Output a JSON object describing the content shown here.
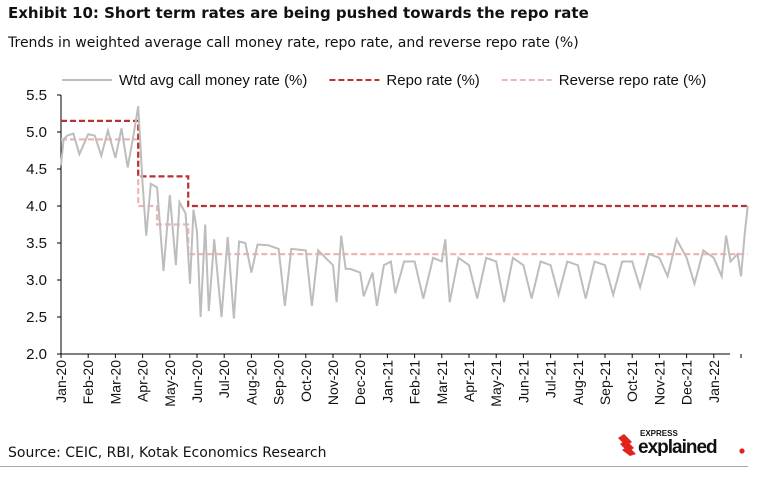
{
  "header": {
    "title": "Exhibit 10: Short term rates are being pushed towards the repo rate",
    "subtitle": "Trends in weighted average call money rate, repo rate, and reverse repo rate (%)"
  },
  "footer": {
    "source": "Source: CEIC, RBI, Kotak Economics Research",
    "logo_text": "EXPRESS explained."
  },
  "chart_data": {
    "type": "line",
    "title": "Exhibit 10: Short term rates are being pushed towards the repo rate",
    "subtitle": "Trends in weighted average call money rate, repo rate, and reverse repo rate (%)",
    "ylim": [
      2.0,
      5.5
    ],
    "yticks": [
      "2.0",
      "2.5",
      "3.0",
      "3.5",
      "4.0",
      "4.5",
      "5.0",
      "5.5"
    ],
    "xticks": [
      "Jan-20",
      "Feb-20",
      "Mar-20",
      "Apr-20",
      "May-20",
      "Jun-20",
      "Jul-20",
      "Aug-20",
      "Sep-20",
      "Oct-20",
      "Nov-20",
      "Dec-20",
      "Jan-21",
      "Feb-21",
      "Mar-21",
      "Apr-21",
      "May-21",
      "Jun-21",
      "Jul-21",
      "Aug-21",
      "Sep-21",
      "Oct-21",
      "Nov-21",
      "Dec-21",
      "Jan-22"
    ],
    "grid": false,
    "legend": "top",
    "series": [
      {
        "name": "Wtd avg call money rate (%)",
        "color": "#bdbdbd",
        "style": "solid",
        "x": [
          "2020-01-01",
          "2020-01-04",
          "2020-01-08",
          "2020-01-15",
          "2020-01-22",
          "2020-02-01",
          "2020-02-08",
          "2020-02-15",
          "2020-02-22",
          "2020-03-01",
          "2020-03-08",
          "2020-03-15",
          "2020-03-22",
          "2020-03-27",
          "2020-04-01",
          "2020-04-05",
          "2020-04-10",
          "2020-04-17",
          "2020-04-24",
          "2020-05-01",
          "2020-05-08",
          "2020-05-12",
          "2020-05-19",
          "2020-05-24",
          "2020-05-28",
          "2020-06-01",
          "2020-06-05",
          "2020-06-10",
          "2020-06-14",
          "2020-06-20",
          "2020-06-28",
          "2020-07-05",
          "2020-07-12",
          "2020-07-18",
          "2020-07-25",
          "2020-08-01",
          "2020-08-08",
          "2020-08-20",
          "2020-09-01",
          "2020-09-08",
          "2020-09-15",
          "2020-10-01",
          "2020-10-08",
          "2020-10-15",
          "2020-11-01",
          "2020-11-05",
          "2020-11-10",
          "2020-11-15",
          "2020-11-20",
          "2020-12-01",
          "2020-12-05",
          "2020-12-15",
          "2020-12-20",
          "2020-12-28",
          "2021-01-05",
          "2021-01-10",
          "2021-01-20",
          "2021-02-01",
          "2021-02-10",
          "2021-02-20",
          "2021-03-01",
          "2021-03-05",
          "2021-03-10",
          "2021-03-20",
          "2021-04-01",
          "2021-04-10",
          "2021-04-20",
          "2021-05-01",
          "2021-05-10",
          "2021-05-20",
          "2021-06-01",
          "2021-06-10",
          "2021-06-20",
          "2021-07-01",
          "2021-07-10",
          "2021-07-20",
          "2021-08-01",
          "2021-08-10",
          "2021-08-20",
          "2021-09-01",
          "2021-09-10",
          "2021-09-20",
          "2021-10-01",
          "2021-10-10",
          "2021-10-20",
          "2021-11-01",
          "2021-11-10",
          "2021-11-20",
          "2021-12-01",
          "2021-12-10",
          "2021-12-20",
          "2022-01-01",
          "2022-01-10",
          "2022-01-15",
          "2022-01-20",
          "2022-01-28",
          "2022-02-01",
          "2022-02-05",
          "2022-02-08"
        ],
        "values": [
          4.55,
          4.9,
          4.95,
          4.98,
          4.7,
          4.97,
          4.95,
          4.68,
          5.02,
          4.65,
          5.05,
          4.52,
          4.98,
          5.35,
          4.3,
          3.6,
          4.3,
          4.25,
          3.12,
          4.15,
          3.2,
          4.05,
          3.9,
          2.95,
          3.95,
          3.65,
          2.5,
          3.75,
          2.58,
          3.55,
          2.5,
          3.58,
          2.48,
          3.52,
          3.5,
          3.1,
          3.48,
          3.47,
          3.42,
          2.65,
          3.42,
          3.4,
          2.65,
          3.4,
          3.2,
          2.7,
          3.6,
          3.15,
          3.15,
          3.1,
          2.78,
          3.1,
          2.65,
          3.2,
          3.25,
          2.82,
          3.25,
          3.25,
          2.75,
          3.3,
          3.25,
          3.55,
          2.7,
          3.3,
          3.2,
          2.75,
          3.3,
          3.25,
          2.7,
          3.3,
          3.2,
          2.75,
          3.25,
          3.2,
          2.8,
          3.25,
          3.2,
          2.75,
          3.25,
          3.2,
          2.8,
          3.25,
          3.25,
          2.9,
          3.35,
          3.3,
          3.05,
          3.55,
          3.3,
          2.95,
          3.4,
          3.3,
          3.05,
          3.6,
          3.25,
          3.35,
          3.05,
          3.65,
          4.0
        ]
      },
      {
        "name": "Repo rate (%)",
        "color": "#b83232",
        "style": "dashed",
        "x": [
          "2020-01-01",
          "2020-03-27",
          "2020-05-22",
          "2022-02-08"
        ],
        "values": [
          5.15,
          4.4,
          4.0,
          4.0
        ]
      },
      {
        "name": "Reverse repo rate (%)",
        "color": "#f0b4b4",
        "style": "dashed",
        "x": [
          "2020-01-01",
          "2020-03-27",
          "2020-04-17",
          "2020-05-22",
          "2022-02-08"
        ],
        "values": [
          4.9,
          4.0,
          3.75,
          3.35,
          3.35
        ]
      }
    ]
  }
}
